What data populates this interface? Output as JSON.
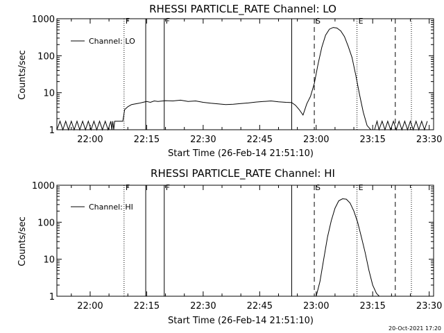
{
  "footer": "20-Oct-2021 17:20",
  "colors": {
    "background": "#ffffff",
    "foreground": "#000000"
  },
  "chart_data": [
    {
      "type": "line",
      "title": "RHESSI PARTICLE_RATE Channel: LO",
      "xlabel": "Start Time (26-Feb-14 21:51:10)",
      "ylabel": "Counts/sec",
      "y_scale": "log",
      "ylim": [
        1,
        1000
      ],
      "xlim": [
        "21:51:10",
        "23:31:10"
      ],
      "x_ticks": [
        "22:00",
        "22:15",
        "22:30",
        "22:45",
        "23:00",
        "23:15",
        "23:30"
      ],
      "y_ticks": [
        "1",
        "10",
        "100",
        "1000"
      ],
      "legend": {
        "label": "Channel: LO",
        "position": "top-left"
      },
      "markers": [
        {
          "time": "22:09:00",
          "style": "dotted",
          "label": "F"
        },
        {
          "time": "22:14:45",
          "style": "solid",
          "label": ""
        },
        {
          "time": "22:19:40",
          "style": "solid",
          "label": "F"
        },
        {
          "time": "22:53:30",
          "style": "solid",
          "label": ""
        },
        {
          "time": "22:59:30",
          "style": "dashed",
          "label": "S"
        },
        {
          "time": "23:10:50",
          "style": "dotted",
          "label": "E"
        },
        {
          "time": "23:21:00",
          "style": "dashed",
          "label": ""
        },
        {
          "time": "23:31:45",
          "style": "dotted",
          "label": ""
        }
      ],
      "series": [
        {
          "x": [
            "21:51:10",
            "21:52:00",
            "21:52:45",
            "21:53:30",
            "21:54:15",
            "21:55:00",
            "21:55:45",
            "21:56:30",
            "21:57:15",
            "21:58:00",
            "21:58:45",
            "21:59:30",
            "22:00:15",
            "22:01:00",
            "22:01:45",
            "22:02:30",
            "22:03:15",
            "22:04:00",
            "22:04:45",
            "22:05:30",
            "22:05:45",
            "22:06:00",
            "22:06:15",
            "22:06:30",
            "22:07:00",
            "22:07:30",
            "22:08:00",
            "22:08:40",
            "22:09:10",
            "22:10:00",
            "22:11:00",
            "22:12:00",
            "22:13:00",
            "22:14:00",
            "22:15:00",
            "22:16:00",
            "22:17:00",
            "22:18:00",
            "22:20:00",
            "22:22:00",
            "22:24:00",
            "22:26:00",
            "22:28:00",
            "22:30:00",
            "22:32:00",
            "22:34:00",
            "22:36:00",
            "22:38:00",
            "22:40:00",
            "22:42:00",
            "22:44:00",
            "22:46:00",
            "22:48:00",
            "22:50:00",
            "22:52:00",
            "22:53:30",
            "22:54:30",
            "22:55:30",
            "22:56:30",
            "22:57:30",
            "22:58:30",
            "22:59:30",
            "23:00:30",
            "23:01:30",
            "23:02:30",
            "23:03:30",
            "23:04:30",
            "23:05:30",
            "23:06:30",
            "23:07:30",
            "23:08:30",
            "23:09:30",
            "23:10:30",
            "23:11:30",
            "23:12:30",
            "23:13:30",
            "23:14:30",
            "23:15:30",
            "23:16:10",
            "23:16:40",
            "23:17:30",
            "23:18:15",
            "23:19:00",
            "23:19:45",
            "23:20:30",
            "23:21:15",
            "23:22:00",
            "23:22:45",
            "23:23:30",
            "23:24:15",
            "23:25:00",
            "23:25:45",
            "23:26:30",
            "23:27:15",
            "23:28:00",
            "23:28:45",
            "23:29:30"
          ],
          "y": [
            1,
            1.7,
            1,
            1.7,
            1,
            1.7,
            1,
            1.7,
            1,
            1.7,
            1,
            1.7,
            1,
            1.7,
            1,
            1.7,
            1,
            1.7,
            1,
            1.7,
            1,
            1.7,
            1,
            1.7,
            1.7,
            1.7,
            1.7,
            1.7,
            3.5,
            4.2,
            4.8,
            5,
            5.2,
            5.5,
            5.8,
            5.5,
            6,
            5.8,
            6.1,
            6,
            6.3,
            5.8,
            6,
            5.5,
            5.2,
            5,
            4.8,
            4.9,
            5.1,
            5.3,
            5.6,
            5.8,
            6,
            5.7,
            5.5,
            5.4,
            4.6,
            3.5,
            2.5,
            5,
            8,
            18,
            60,
            170,
            360,
            520,
            580,
            560,
            470,
            330,
            180,
            90,
            30,
            9,
            3,
            1.3,
            1,
            1,
            1.7,
            1,
            1.7,
            1,
            1.7,
            1,
            1.7,
            1,
            1.7,
            1,
            1.7,
            1,
            1.7,
            1,
            1.7,
            1,
            1.7,
            1,
            1.7
          ]
        }
      ]
    },
    {
      "type": "line",
      "title": "RHESSI PARTICLE_RATE Channel: HI",
      "xlabel": "Start Time (26-Feb-14 21:51:10)",
      "ylabel": "Counts/sec",
      "y_scale": "log",
      "ylim": [
        1,
        1000
      ],
      "xlim": [
        "21:51:10",
        "23:31:10"
      ],
      "x_ticks": [
        "22:00",
        "22:15",
        "22:30",
        "22:45",
        "23:00",
        "23:15",
        "23:30"
      ],
      "y_ticks": [
        "1",
        "10",
        "100",
        "1000"
      ],
      "legend": {
        "label": "Channel: HI",
        "position": "top-left"
      },
      "markers": [
        {
          "time": "22:09:00",
          "style": "dotted",
          "label": "F"
        },
        {
          "time": "22:14:45",
          "style": "solid",
          "label": ""
        },
        {
          "time": "22:19:40",
          "style": "solid",
          "label": "F"
        },
        {
          "time": "22:53:30",
          "style": "solid",
          "label": ""
        },
        {
          "time": "22:59:30",
          "style": "dashed",
          "label": "S"
        },
        {
          "time": "23:10:50",
          "style": "dotted",
          "label": "E"
        },
        {
          "time": "23:21:00",
          "style": "dashed",
          "label": ""
        },
        {
          "time": "23:31:45",
          "style": "dotted",
          "label": ""
        }
      ],
      "series": [
        {
          "x": [
            "23:00:00",
            "23:01:00",
            "23:02:00",
            "23:03:00",
            "23:04:00",
            "23:05:00",
            "23:06:00",
            "23:07:00",
            "23:08:00",
            "23:09:00",
            "23:10:00",
            "23:11:00",
            "23:12:00",
            "23:13:00",
            "23:14:00",
            "23:15:00",
            "23:16:00",
            "23:16:45"
          ],
          "y": [
            1,
            2.5,
            10,
            40,
            110,
            240,
            380,
            430,
            420,
            330,
            200,
            100,
            40,
            15,
            5,
            2,
            1.2,
            1
          ]
        }
      ]
    }
  ]
}
